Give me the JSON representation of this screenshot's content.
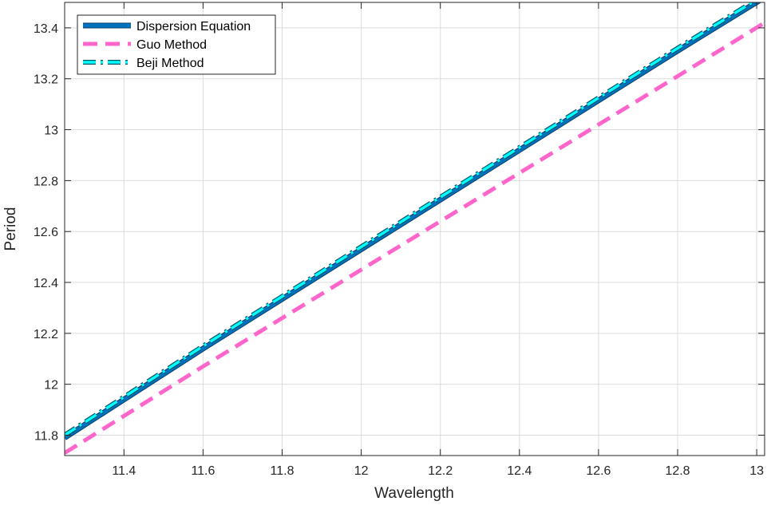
{
  "chart_data": {
    "type": "line",
    "title": "",
    "xlabel": "Wavelength",
    "ylabel": "Period",
    "xlim": [
      11.25,
      13.02
    ],
    "ylim": [
      11.72,
      13.5
    ],
    "xticks": [
      11.4,
      11.6,
      11.8,
      12,
      12.2,
      12.4,
      12.6,
      12.8,
      13
    ],
    "xtick_labels": [
      "11.4",
      "11.6",
      "11.8",
      "12",
      "12.2",
      "12.4",
      "12.6",
      "12.8",
      "13"
    ],
    "yticks": [
      11.8,
      12,
      12.2,
      12.4,
      12.6,
      12.8,
      13,
      13.2,
      13.4
    ],
    "ytick_labels": [
      "11.8",
      "12",
      "12.2",
      "12.4",
      "12.6",
      "12.8",
      "13",
      "13.2",
      "13.4"
    ],
    "grid": true,
    "legend_position": "top-left",
    "series": [
      {
        "name": "Dispersion Equation",
        "color": "#0072BD",
        "style": "solid",
        "x": [
          11.25,
          11.6,
          12.0,
          12.4,
          12.8,
          13.02
        ],
        "y": [
          11.79,
          12.14,
          12.53,
          12.92,
          13.31,
          13.52
        ]
      },
      {
        "name": "Guo Method",
        "color": "#FF66CC",
        "style": "dashed",
        "x": [
          11.25,
          11.6,
          12.0,
          12.4,
          12.8,
          13.02
        ],
        "y": [
          11.73,
          12.07,
          12.45,
          12.83,
          13.21,
          13.42
        ]
      },
      {
        "name": "Beji Method",
        "color": "#00FFFF",
        "style": "dashdot",
        "x": [
          11.25,
          11.6,
          12.0,
          12.4,
          12.8,
          13.02
        ],
        "y": [
          11.8,
          12.15,
          12.54,
          12.93,
          13.32,
          13.53
        ]
      }
    ]
  }
}
